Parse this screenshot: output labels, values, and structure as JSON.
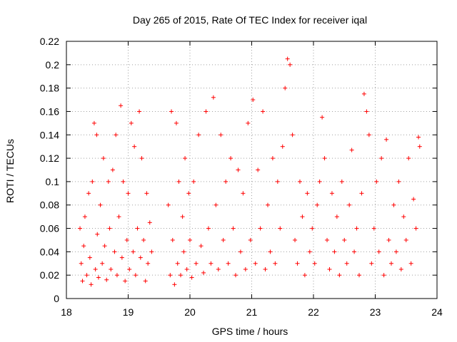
{
  "chart_data": {
    "type": "scatter",
    "title": "Day 265 of 2015, Rate Of TEC Index for receiver iqal",
    "xlabel": "GPS time / hours",
    "ylabel": "ROTI / TECUs",
    "xlim": [
      18,
      24
    ],
    "ylim": [
      0,
      0.22
    ],
    "x_ticks": [
      "18",
      "19",
      "20",
      "21",
      "22",
      "23",
      "24"
    ],
    "y_ticks": [
      "0",
      "0.02",
      "0.04",
      "0.06",
      "0.08",
      "0.1",
      "0.12",
      "0.14",
      "0.16",
      "0.18",
      "0.2",
      "0.22"
    ],
    "grid": true,
    "marker": "plus",
    "color": "#ff0000",
    "series": [
      {
        "x": [
          18.22,
          18.24,
          18.26,
          18.28,
          18.3,
          18.33,
          18.36,
          18.38,
          18.4,
          18.42,
          18.45,
          18.47,
          18.49,
          18.5,
          18.52,
          18.55,
          18.58,
          18.6,
          18.62,
          18.65,
          18.68,
          18.7,
          18.72,
          18.75,
          18.78,
          18.8,
          18.82,
          18.85,
          18.88,
          18.9,
          18.92,
          18.95,
          18.98,
          19.0,
          19.02,
          19.05,
          19.08,
          19.1,
          19.12,
          19.15,
          19.18,
          19.2,
          19.22,
          19.25,
          19.28,
          19.3,
          19.32,
          19.35,
          19.38,
          19.65,
          19.68,
          19.7,
          19.72,
          19.75,
          19.78,
          19.8,
          19.82,
          19.85,
          19.88,
          19.9,
          19.92,
          19.95,
          19.98,
          20.0,
          20.03,
          20.06,
          20.1,
          20.14,
          20.18,
          20.22,
          20.26,
          20.3,
          20.34,
          20.38,
          20.42,
          20.46,
          20.5,
          20.54,
          20.58,
          20.62,
          20.66,
          20.7,
          20.74,
          20.78,
          20.82,
          20.86,
          20.9,
          20.94,
          20.98,
          21.02,
          21.06,
          21.1,
          21.14,
          21.18,
          21.22,
          21.26,
          21.3,
          21.34,
          21.38,
          21.42,
          21.46,
          21.5,
          21.54,
          21.58,
          21.62,
          21.66,
          21.7,
          21.74,
          21.78,
          21.82,
          21.86,
          21.9,
          21.94,
          21.98,
          22.02,
          22.06,
          22.1,
          22.14,
          22.18,
          22.22,
          22.26,
          22.3,
          22.34,
          22.38,
          22.42,
          22.46,
          22.5,
          22.54,
          22.58,
          22.62,
          22.66,
          22.7,
          22.74,
          22.78,
          22.82,
          22.86,
          22.9,
          22.94,
          22.98,
          23.02,
          23.06,
          23.1,
          23.14,
          23.18,
          23.22,
          23.26,
          23.3,
          23.34,
          23.38,
          23.42,
          23.46,
          23.5,
          23.54,
          23.58,
          23.62,
          23.66,
          23.7,
          23.72
        ],
        "y": [
          0.06,
          0.03,
          0.015,
          0.045,
          0.07,
          0.02,
          0.09,
          0.035,
          0.012,
          0.1,
          0.15,
          0.025,
          0.14,
          0.055,
          0.018,
          0.08,
          0.03,
          0.12,
          0.045,
          0.016,
          0.1,
          0.06,
          0.025,
          0.11,
          0.04,
          0.14,
          0.02,
          0.07,
          0.165,
          0.035,
          0.1,
          0.015,
          0.05,
          0.09,
          0.025,
          0.15,
          0.04,
          0.13,
          0.02,
          0.06,
          0.16,
          0.035,
          0.12,
          0.05,
          0.015,
          0.09,
          0.03,
          0.065,
          0.04,
          0.08,
          0.02,
          0.16,
          0.05,
          0.012,
          0.15,
          0.03,
          0.1,
          0.02,
          0.07,
          0.04,
          0.12,
          0.025,
          0.09,
          0.05,
          0.018,
          0.1,
          0.03,
          0.14,
          0.045,
          0.022,
          0.16,
          0.06,
          0.03,
          0.172,
          0.08,
          0.025,
          0.14,
          0.05,
          0.1,
          0.03,
          0.12,
          0.06,
          0.02,
          0.11,
          0.04,
          0.09,
          0.025,
          0.15,
          0.05,
          0.17,
          0.03,
          0.11,
          0.06,
          0.16,
          0.025,
          0.08,
          0.04,
          0.12,
          0.03,
          0.1,
          0.06,
          0.13,
          0.18,
          0.205,
          0.2,
          0.14,
          0.05,
          0.03,
          0.1,
          0.07,
          0.02,
          0.09,
          0.04,
          0.06,
          0.03,
          0.08,
          0.1,
          0.155,
          0.12,
          0.05,
          0.025,
          0.09,
          0.04,
          0.07,
          0.02,
          0.1,
          0.05,
          0.03,
          0.08,
          0.127,
          0.04,
          0.06,
          0.02,
          0.09,
          0.175,
          0.16,
          0.14,
          0.03,
          0.06,
          0.1,
          0.04,
          0.12,
          0.02,
          0.136,
          0.05,
          0.03,
          0.08,
          0.04,
          0.1,
          0.025,
          0.07,
          0.05,
          0.12,
          0.03,
          0.085,
          0.06,
          0.138,
          0.13
        ]
      }
    ]
  }
}
